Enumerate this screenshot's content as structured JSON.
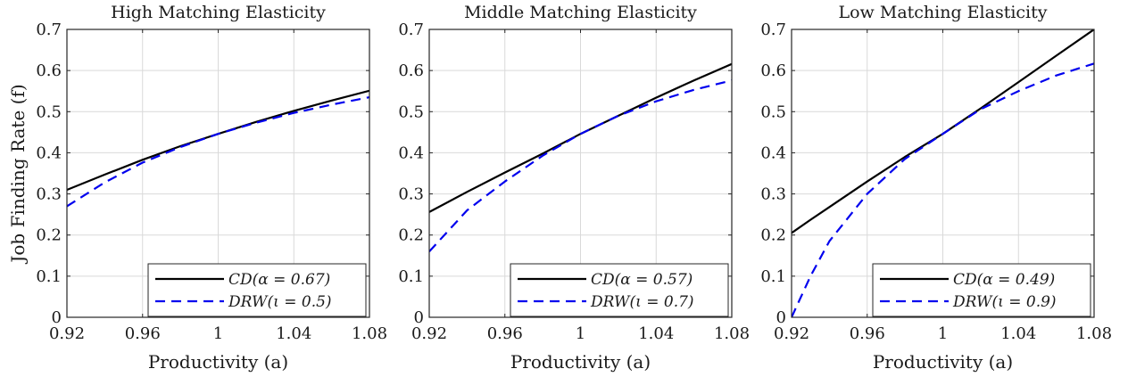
{
  "figure": {
    "ylabel": "Job Finding Rate (f)",
    "xlabel": "Productivity (a)"
  },
  "chart_data": [
    {
      "type": "line",
      "title": "High Matching Elasticity",
      "xlabel": "Productivity (a)",
      "ylabel": "Job Finding Rate (f)",
      "xlim": [
        0.92,
        1.08
      ],
      "ylim": [
        0,
        0.7
      ],
      "xticks": [
        "0.92",
        "0.96",
        "1",
        "1.04",
        "1.08"
      ],
      "yticks": [
        "0",
        "0.1",
        "0.2",
        "0.3",
        "0.4",
        "0.5",
        "0.6",
        "0.7"
      ],
      "grid": true,
      "legend_position": "bottom-right",
      "x": [
        0.92,
        0.94,
        0.96,
        0.98,
        1.0,
        1.02,
        1.04,
        1.06,
        1.08
      ],
      "series": [
        {
          "name": "CD(α = 0.67)",
          "color": "#000000",
          "style": "solid",
          "values": [
            0.31,
            0.347,
            0.383,
            0.416,
            0.446,
            0.475,
            0.502,
            0.527,
            0.551
          ]
        },
        {
          "name": "DRW(ι = 0.5)",
          "color": "#0000ee",
          "style": "dashed",
          "values": [
            0.27,
            0.328,
            0.376,
            0.414,
            0.446,
            0.473,
            0.497,
            0.517,
            0.535
          ]
        }
      ]
    },
    {
      "type": "line",
      "title": "Middle Matching Elasticity",
      "xlabel": "Productivity (a)",
      "ylabel": "",
      "xlim": [
        0.92,
        1.08
      ],
      "ylim": [
        0,
        0.7
      ],
      "xticks": [
        "0.92",
        "0.96",
        "1",
        "1.04",
        "1.08"
      ],
      "yticks": [
        "0",
        "0.1",
        "0.2",
        "0.3",
        "0.4",
        "0.5",
        "0.6",
        "0.7"
      ],
      "grid": true,
      "legend_position": "bottom-right",
      "x": [
        0.92,
        0.94,
        0.96,
        0.98,
        1.0,
        1.02,
        1.04,
        1.06,
        1.08
      ],
      "series": [
        {
          "name": "CD(α = 0.57)",
          "color": "#000000",
          "style": "solid",
          "values": [
            0.256,
            0.305,
            0.352,
            0.398,
            0.446,
            0.49,
            0.534,
            0.576,
            0.616
          ]
        },
        {
          "name": "DRW(ι = 0.7)",
          "color": "#0000ee",
          "style": "dashed",
          "values": [
            0.16,
            0.26,
            0.33,
            0.393,
            0.446,
            0.49,
            0.525,
            0.553,
            0.576
          ]
        }
      ]
    },
    {
      "type": "line",
      "title": "Low Matching Elasticity",
      "xlabel": "Productivity (a)",
      "ylabel": "",
      "xlim": [
        0.92,
        1.08
      ],
      "ylim": [
        0,
        0.7
      ],
      "xticks": [
        "0.92",
        "0.96",
        "1",
        "1.04",
        "1.08"
      ],
      "yticks": [
        "0",
        "0.1",
        "0.2",
        "0.3",
        "0.4",
        "0.5",
        "0.6",
        "0.7"
      ],
      "grid": true,
      "legend_position": "bottom-right",
      "x": [
        0.92,
        0.93,
        0.94,
        0.96,
        0.98,
        1.0,
        1.02,
        1.04,
        1.06,
        1.08
      ],
      "series": [
        {
          "name": "CD(α = 0.49)",
          "color": "#000000",
          "style": "solid",
          "values": [
            0.205,
            0.237,
            0.268,
            0.33,
            0.39,
            0.446,
            0.508,
            0.572,
            0.636,
            0.7
          ]
        },
        {
          "name": "DRW(ι = 0.9)",
          "color": "#0000ee",
          "style": "dashed",
          "values": [
            0.0,
            0.1,
            0.185,
            0.3,
            0.385,
            0.446,
            0.506,
            0.55,
            0.588,
            0.617
          ]
        }
      ]
    }
  ]
}
